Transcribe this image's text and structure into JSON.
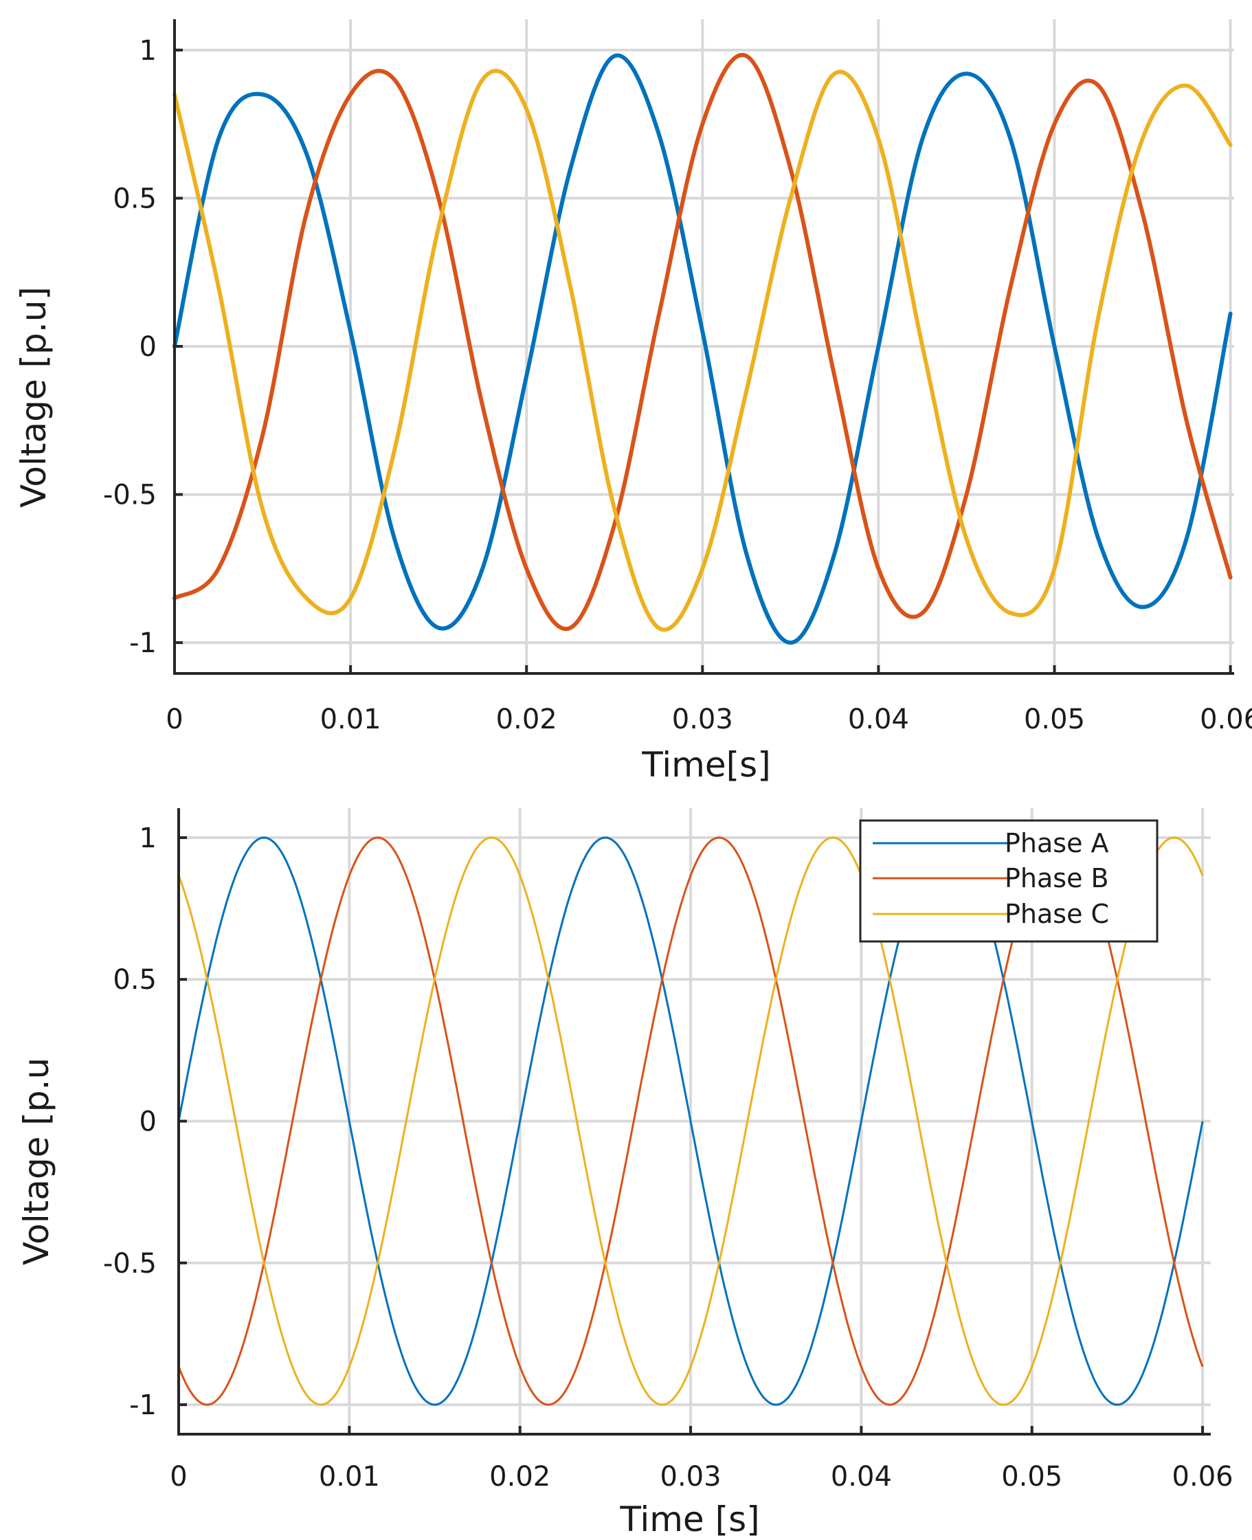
{
  "chart_data": [
    {
      "type": "line",
      "title": "",
      "xlabel": "Time[s]",
      "ylabel": "Voltage [p.u]",
      "xlim": [
        0,
        0.06
      ],
      "ylim": [
        -1,
        1
      ],
      "xticks": [
        0,
        0.01,
        0.02,
        0.03,
        0.04,
        0.05,
        0.06
      ],
      "xtick_labels": [
        "0",
        "0.01",
        "0.02",
        "0.03",
        "0.04",
        "0.05",
        "0.06"
      ],
      "yticks": [
        1,
        0.5,
        0,
        -0.5,
        -1
      ],
      "ytick_labels": [
        "1",
        "0.5",
        "0",
        "-0.5",
        "-1"
      ],
      "grid": true,
      "legend": false,
      "series": [
        {
          "name": "Phase A",
          "color": "#0072BD",
          "x": [
            0,
            0.0025,
            0.005,
            0.0075,
            0.01,
            0.0125,
            0.015,
            0.0175,
            0.02,
            0.0225,
            0.025,
            0.0275,
            0.03,
            0.0325,
            0.035,
            0.0375,
            0.04,
            0.0425,
            0.045,
            0.0475,
            0.05,
            0.0525,
            0.055,
            0.0575,
            0.06
          ],
          "y": [
            0,
            0.7,
            0.85,
            0.65,
            0.05,
            -0.65,
            -0.95,
            -0.75,
            -0.1,
            0.6,
            0.98,
            0.72,
            0.05,
            -0.7,
            -1.0,
            -0.7,
            0.0,
            0.7,
            0.92,
            0.7,
            0.0,
            -0.65,
            -0.88,
            -0.65,
            0.11
          ]
        },
        {
          "name": "Phase B",
          "color": "#D95319",
          "x": [
            0,
            0.0025,
            0.005,
            0.0075,
            0.01,
            0.0125,
            0.015,
            0.0175,
            0.02,
            0.0225,
            0.025,
            0.0275,
            0.03,
            0.0325,
            0.035,
            0.0375,
            0.04,
            0.0425,
            0.045,
            0.0475,
            0.05,
            0.0525,
            0.055,
            0.0575,
            0.06
          ],
          "y": [
            -0.85,
            -0.75,
            -0.3,
            0.45,
            0.85,
            0.9,
            0.5,
            -0.2,
            -0.75,
            -0.95,
            -0.6,
            0.1,
            0.75,
            0.98,
            0.6,
            -0.1,
            -0.75,
            -0.9,
            -0.5,
            0.2,
            0.75,
            0.88,
            0.45,
            -0.25,
            -0.78
          ]
        },
        {
          "name": "Phase C",
          "color": "#EDB120",
          "x": [
            0,
            0.0025,
            0.005,
            0.0075,
            0.01,
            0.0125,
            0.015,
            0.0175,
            0.02,
            0.0225,
            0.025,
            0.0275,
            0.03,
            0.0325,
            0.035,
            0.0375,
            0.04,
            0.0425,
            0.045,
            0.0475,
            0.05,
            0.0525,
            0.055,
            0.0575,
            0.06
          ],
          "y": [
            0.85,
            0.2,
            -0.55,
            -0.85,
            -0.85,
            -0.35,
            0.4,
            0.9,
            0.8,
            0.2,
            -0.55,
            -0.95,
            -0.75,
            -0.15,
            0.5,
            0.92,
            0.7,
            0.0,
            -0.65,
            -0.9,
            -0.75,
            0.1,
            0.7,
            0.88,
            0.68
          ]
        }
      ]
    },
    {
      "type": "line",
      "title": "",
      "xlabel": "Time [s]",
      "ylabel": "Voltage [p.u",
      "xlim": [
        0,
        0.06
      ],
      "ylim": [
        -1,
        1
      ],
      "xticks": [
        0,
        0.01,
        0.02,
        0.03,
        0.04,
        0.05,
        0.06
      ],
      "xtick_labels": [
        "0",
        "0.01",
        "0.02",
        "0.03",
        "0.04",
        "0.05",
        "0.06"
      ],
      "yticks": [
        1,
        0.5,
        0,
        -0.5,
        -1
      ],
      "ytick_labels": [
        "1",
        "0.5",
        "0",
        "-0.5",
        "-1"
      ],
      "grid": true,
      "legend": true,
      "legend_position": "top-right",
      "frequency_hz": 50,
      "amplitude": 1,
      "series": [
        {
          "name": "Phase A",
          "color": "#0072BD",
          "phase_deg": 0
        },
        {
          "name": "Phase B",
          "color": "#D95319",
          "phase_deg": -120
        },
        {
          "name": "Phase C",
          "color": "#EDB120",
          "phase_deg": 120
        }
      ]
    }
  ]
}
